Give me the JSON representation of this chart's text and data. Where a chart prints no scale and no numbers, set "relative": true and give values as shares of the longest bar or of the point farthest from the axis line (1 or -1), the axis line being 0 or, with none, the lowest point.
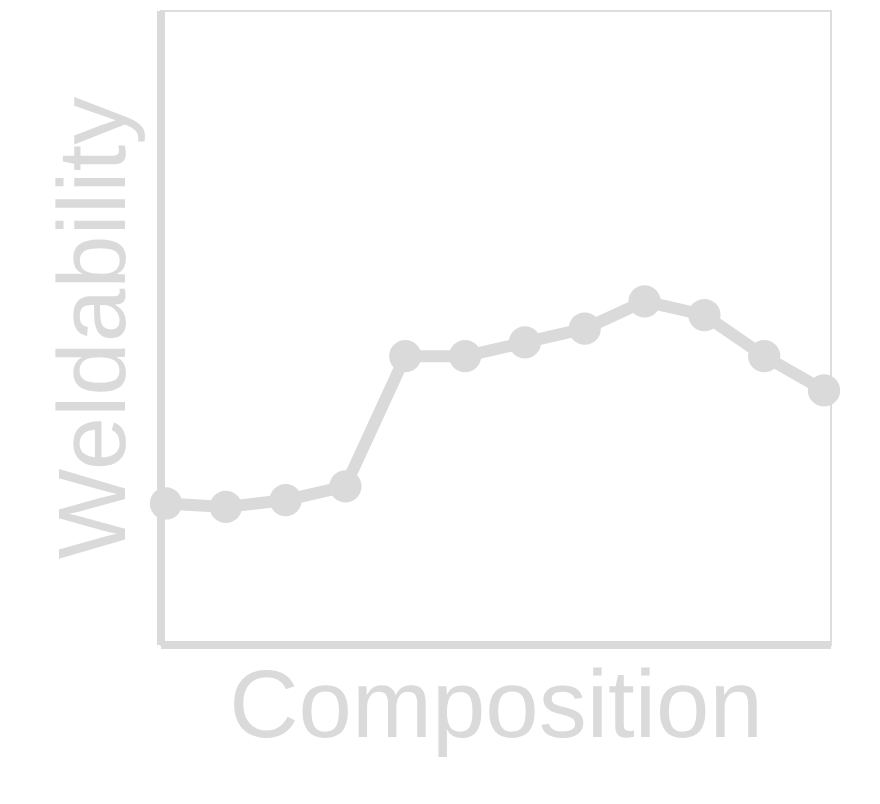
{
  "chart_data": {
    "type": "line",
    "relative": true,
    "xlabel": "Composition",
    "ylabel": "Weldability",
    "tick_labels": false,
    "marker": "circle",
    "line_style": "solid",
    "color": "#dadada",
    "categories": [
      null,
      null,
      null,
      null,
      null,
      null,
      null,
      null,
      null,
      null,
      null,
      null
    ],
    "values": [
      0.41,
      0.4,
      0.42,
      0.46,
      0.84,
      0.84,
      0.88,
      0.92,
      1,
      0.96,
      0.84,
      0.74
    ]
  }
}
